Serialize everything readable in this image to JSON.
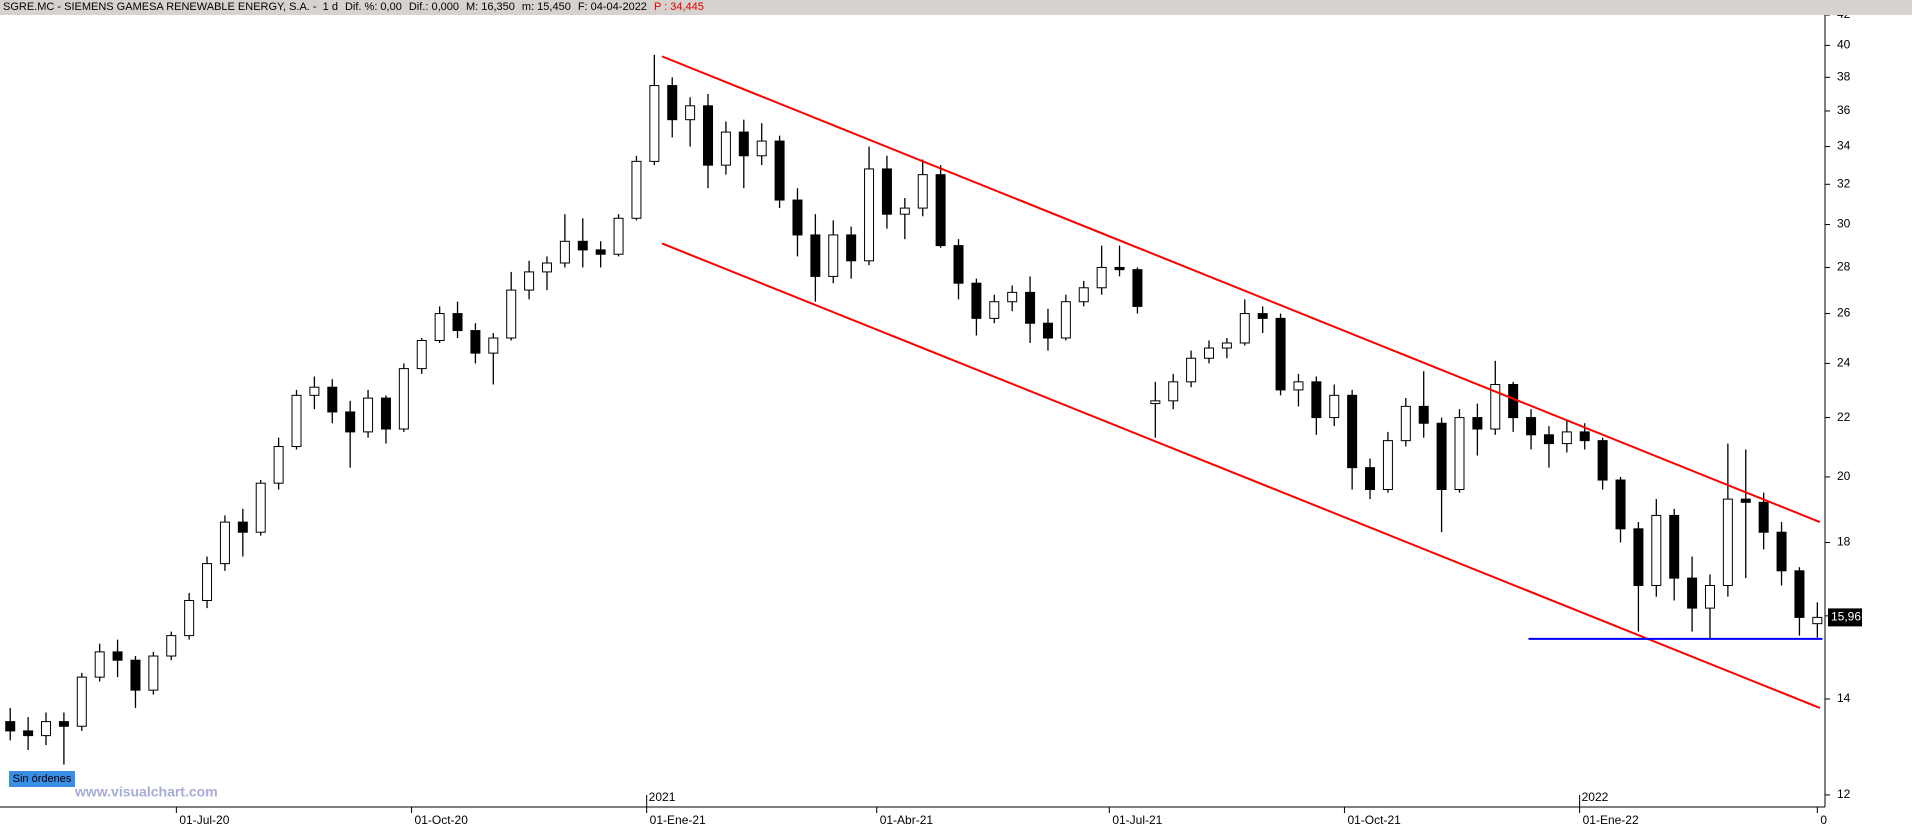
{
  "header": {
    "title": "SGRE.MC - SIEMENS GAMESA RENEWABLE ENERGY, S.A. -  1 d",
    "stats": [
      "Dif. %: 0,00",
      "Dif.: 0,000",
      "M: 16,350",
      "m: 15,450",
      "F: 04-04-2022"
    ],
    "p": "P : 34,445"
  },
  "footer": {
    "button": "Sin órdenes",
    "watermark": "www.visualchart.com"
  },
  "chart_data": {
    "type": "candlestick",
    "log_scale": true,
    "color": "#000000",
    "up_fill": "#ffffff",
    "down_fill": "#000000",
    "x": [
      "2020-04-27",
      "2020-05-04",
      "2020-05-11",
      "2020-05-18",
      "2020-05-25",
      "2020-06-01",
      "2020-06-08",
      "2020-06-15",
      "2020-06-22",
      "2020-06-29",
      "2020-07-06",
      "2020-07-13",
      "2020-07-20",
      "2020-07-27",
      "2020-08-03",
      "2020-08-10",
      "2020-08-17",
      "2020-08-24",
      "2020-08-31",
      "2020-09-07",
      "2020-09-14",
      "2020-09-21",
      "2020-09-28",
      "2020-10-05",
      "2020-10-12",
      "2020-10-19",
      "2020-10-26",
      "2020-11-02",
      "2020-11-09",
      "2020-11-16",
      "2020-11-23",
      "2020-11-30",
      "2020-12-07",
      "2020-12-14",
      "2020-12-21",
      "2020-12-28",
      "2021-01-04",
      "2021-01-11",
      "2021-01-18",
      "2021-01-25",
      "2021-02-01",
      "2021-02-08",
      "2021-02-15",
      "2021-02-22",
      "2021-03-01",
      "2021-03-08",
      "2021-03-15",
      "2021-03-22",
      "2021-03-29",
      "2021-04-05",
      "2021-04-12",
      "2021-04-19",
      "2021-04-26",
      "2021-05-03",
      "2021-05-10",
      "2021-05-17",
      "2021-05-24",
      "2021-05-31",
      "2021-06-07",
      "2021-06-14",
      "2021-06-21",
      "2021-06-28",
      "2021-07-05",
      "2021-07-12",
      "2021-07-19",
      "2021-07-26",
      "2021-08-02",
      "2021-08-09",
      "2021-08-16",
      "2021-08-23",
      "2021-08-30",
      "2021-09-06",
      "2021-09-13",
      "2021-09-20",
      "2021-09-27",
      "2021-10-04",
      "2021-10-11",
      "2021-10-18",
      "2021-10-25",
      "2021-11-01",
      "2021-11-08",
      "2021-11-15",
      "2021-11-22",
      "2021-11-29",
      "2021-12-06",
      "2021-12-13",
      "2021-12-20",
      "2021-12-27",
      "2022-01-03",
      "2022-01-10",
      "2022-01-17",
      "2022-01-24",
      "2022-01-31",
      "2022-02-07",
      "2022-02-14",
      "2022-02-21",
      "2022-02-28",
      "2022-03-07",
      "2022-03-14",
      "2022-03-21",
      "2022-03-28",
      "2022-04-04"
    ],
    "open": [
      13.5,
      13.3,
      13.2,
      13.5,
      13.4,
      14.5,
      15.1,
      14.9,
      14.2,
      15.0,
      15.5,
      16.4,
      17.4,
      18.6,
      18.3,
      19.8,
      21.0,
      22.8,
      23.1,
      22.2,
      21.5,
      22.7,
      21.6,
      23.8,
      24.9,
      26.0,
      25.3,
      24.4,
      25.0,
      27.0,
      27.8,
      28.2,
      29.2,
      28.8,
      28.6,
      30.3,
      33.2,
      37.5,
      35.5,
      36.3,
      33.0,
      34.8,
      33.5,
      34.3,
      31.2,
      29.5,
      27.6,
      29.5,
      28.3,
      32.8,
      30.5,
      30.8,
      32.5,
      29.0,
      27.3,
      25.8,
      26.5,
      26.9,
      25.6,
      25.0,
      26.5,
      27.1,
      28.0,
      27.9,
      22.5,
      22.6,
      23.3,
      24.2,
      24.6,
      24.8,
      26.0,
      25.8,
      23.0,
      23.3,
      22.0,
      22.8,
      20.3,
      19.6,
      21.2,
      22.4,
      21.8,
      19.6,
      22.0,
      21.6,
      23.2,
      22.0,
      21.4,
      21.1,
      21.5,
      21.2,
      19.9,
      18.4,
      16.8,
      18.8,
      17.0,
      16.2,
      16.8,
      19.3,
      19.2,
      18.3,
      17.2,
      15.8
    ],
    "high": [
      13.8,
      13.6,
      13.7,
      13.7,
      14.6,
      15.3,
      15.4,
      15.0,
      15.1,
      15.6,
      16.6,
      17.6,
      18.8,
      19.0,
      19.9,
      21.3,
      23.0,
      23.5,
      23.4,
      22.6,
      23.0,
      22.8,
      24.0,
      25.0,
      26.3,
      26.5,
      25.6,
      25.2,
      27.8,
      28.3,
      28.5,
      30.5,
      30.3,
      29.2,
      30.5,
      33.5,
      39.4,
      38.0,
      36.8,
      37.0,
      35.4,
      35.5,
      35.3,
      34.6,
      31.8,
      30.5,
      30.2,
      29.9,
      34.0,
      33.5,
      31.3,
      33.3,
      33.0,
      29.3,
      27.5,
      26.8,
      27.2,
      27.6,
      26.2,
      26.8,
      27.4,
      29.0,
      29.0,
      28.0,
      23.3,
      23.6,
      24.5,
      24.9,
      25.0,
      26.6,
      26.3,
      26.0,
      23.6,
      23.5,
      23.2,
      23.0,
      20.6,
      21.5,
      22.7,
      23.7,
      22.0,
      22.3,
      22.5,
      24.1,
      23.3,
      22.3,
      21.7,
      21.9,
      21.8,
      21.3,
      20.0,
      18.6,
      19.3,
      19.0,
      17.6,
      17.1,
      21.1,
      20.9,
      19.5,
      18.6,
      17.3,
      16.35
    ],
    "low": [
      13.1,
      12.9,
      13.0,
      12.6,
      13.3,
      14.4,
      14.5,
      13.8,
      14.1,
      14.9,
      15.4,
      16.2,
      17.2,
      17.6,
      18.2,
      19.6,
      20.9,
      22.3,
      21.8,
      20.3,
      21.3,
      21.1,
      21.5,
      23.6,
      24.8,
      25.0,
      24.0,
      23.2,
      24.9,
      26.6,
      27.0,
      28.0,
      28.0,
      28.0,
      28.5,
      30.2,
      33.0,
      34.5,
      34.0,
      31.8,
      32.5,
      31.8,
      33.0,
      30.8,
      28.5,
      26.5,
      27.3,
      27.5,
      28.1,
      29.8,
      29.3,
      30.4,
      28.9,
      26.6,
      25.1,
      25.6,
      26.1,
      24.8,
      24.5,
      24.9,
      26.3,
      26.8,
      27.6,
      26.0,
      21.3,
      22.3,
      23.1,
      24.0,
      24.2,
      24.7,
      25.2,
      22.8,
      22.4,
      21.4,
      21.7,
      19.6,
      19.3,
      19.5,
      21.0,
      21.3,
      18.3,
      19.5,
      20.7,
      21.4,
      21.5,
      20.9,
      20.3,
      20.8,
      20.9,
      19.6,
      18.0,
      15.6,
      16.5,
      16.4,
      15.6,
      15.4,
      16.5,
      17.0,
      17.8,
      16.8,
      15.5,
      15.45
    ],
    "close": [
      13.3,
      13.2,
      13.5,
      13.4,
      14.5,
      15.1,
      14.9,
      14.2,
      15.0,
      15.5,
      16.4,
      17.4,
      18.6,
      18.3,
      19.8,
      21.0,
      22.8,
      23.1,
      22.2,
      21.5,
      22.7,
      21.6,
      23.8,
      24.9,
      26.0,
      25.3,
      24.4,
      25.0,
      27.0,
      27.8,
      28.2,
      29.2,
      28.8,
      28.6,
      30.3,
      33.2,
      37.5,
      35.5,
      36.3,
      33.0,
      34.8,
      33.5,
      34.3,
      31.2,
      29.5,
      27.6,
      29.5,
      28.3,
      32.8,
      30.5,
      30.8,
      32.5,
      29.0,
      27.3,
      25.8,
      26.5,
      26.9,
      25.6,
      25.0,
      26.5,
      27.1,
      28.0,
      27.9,
      26.3,
      22.6,
      23.3,
      24.2,
      24.6,
      24.8,
      26.0,
      25.8,
      23.0,
      23.3,
      22.0,
      22.8,
      20.3,
      19.6,
      21.2,
      22.4,
      21.8,
      19.6,
      22.0,
      21.6,
      23.2,
      22.0,
      21.4,
      21.1,
      21.5,
      21.2,
      19.9,
      18.4,
      16.8,
      18.8,
      17.0,
      16.2,
      16.8,
      19.3,
      19.2,
      18.3,
      17.2,
      15.96,
      15.96
    ],
    "xlim": [
      "2020-04-23",
      "2022-04-07"
    ],
    "xticks": [
      {
        "value": "2020-07-01",
        "label": "01-Jul-20"
      },
      {
        "value": "2020-10-01",
        "label": "01-Oct-20"
      },
      {
        "value": "2021-01-01",
        "label": "01-Ene-21"
      },
      {
        "value": "2021-04-01",
        "label": "01-Abr-21"
      },
      {
        "value": "2021-07-01",
        "label": "01-Jul-21"
      },
      {
        "value": "2021-10-01",
        "label": "01-Oct-21"
      },
      {
        "value": "2022-01-01",
        "label": "01-Ene-22"
      },
      {
        "value": "2022-04-04",
        "label": "0"
      }
    ],
    "year_ticks": [
      {
        "value": "2021-01-01",
        "label": "2021"
      },
      {
        "value": "2022-01-01",
        "label": "2022"
      }
    ],
    "ylim": [
      11.77,
      42
    ],
    "yticks": [
      12,
      14,
      16,
      18,
      20,
      22,
      24,
      26,
      28,
      30,
      32,
      34,
      36,
      38,
      40,
      42
    ],
    "last_price": {
      "value": 15.96,
      "label": "15,96"
    },
    "lines": [
      {
        "color": "#ff0000",
        "x": [
          "2021-01-07",
          "2022-04-05"
        ],
        "y": [
          39.3,
          18.6
        ]
      },
      {
        "color": "#ff0000",
        "x": [
          "2021-01-07",
          "2022-04-05"
        ],
        "y": [
          29.1,
          13.8
        ]
      },
      {
        "color": "#0000ff",
        "x": [
          "2021-12-12",
          "2022-04-06"
        ],
        "y": [
          15.42,
          15.42
        ]
      }
    ]
  }
}
